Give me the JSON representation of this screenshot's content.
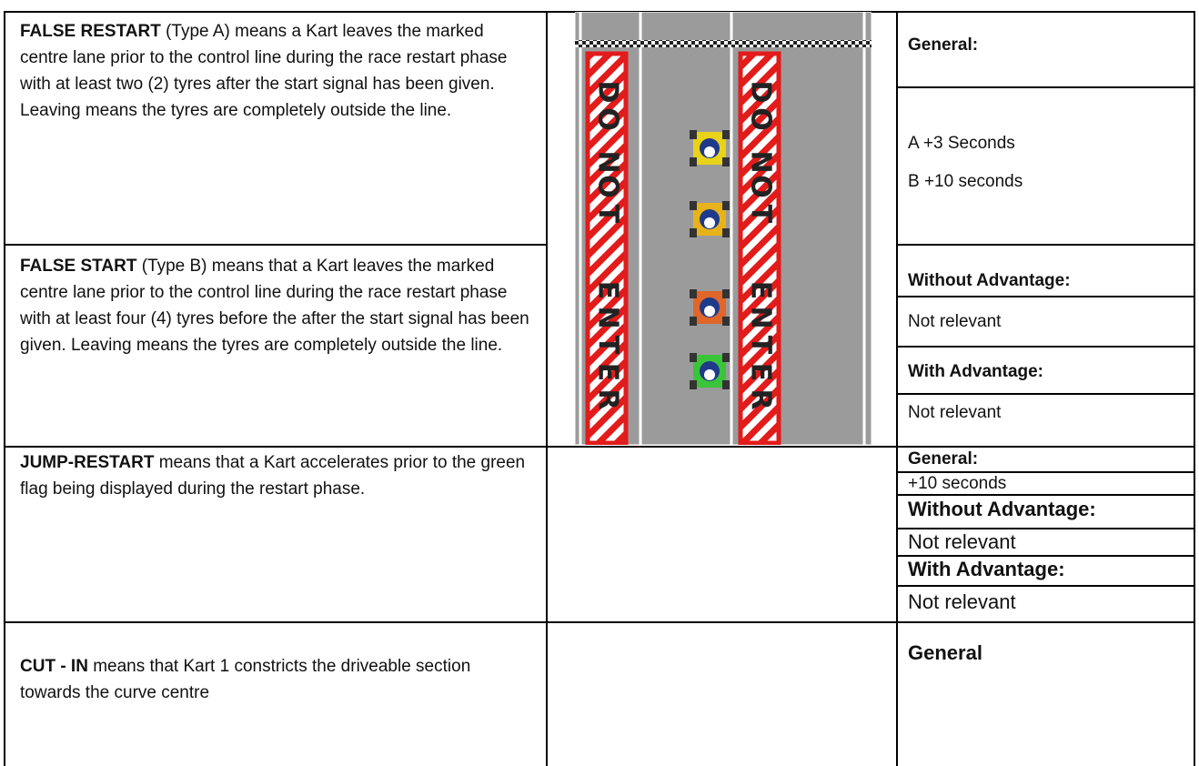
{
  "rows": [
    {
      "term": "FALSE RESTART",
      "description": " (Type A) means a Kart leaves the marked centre lane prior to the control line during the race restart phase with at least two (2) tyres after the start signal has been given. Leaving means the tyres are completely outside the line.",
      "penalties": [
        "General:",
        "A +3 Seconds",
        "B +10 seconds"
      ]
    },
    {
      "term": "FALSE START",
      "description": " (Type B) means that a Kart leaves the marked centre lane prior to the control line during the race restart phase with at least four (4) tyres before the after the start signal has been given. Leaving means the tyres are completely outside the line.",
      "penalties": [
        "Without Advantage:",
        "Not relevant",
        "With Advantage:",
        "Not relevant"
      ]
    },
    {
      "term": "JUMP-RESTART",
      "description": " means that a Kart accelerates prior to the green flag being displayed during the restart phase.",
      "penalties": [
        "General:",
        "+10 seconds",
        "Without Advantage:",
        "Not relevant",
        "With Advantage:",
        "Not relevant"
      ]
    },
    {
      "term": "CUT - IN",
      "description": " means that Kart 1 constricts the driveable section towards the curve centre",
      "penalties": [
        "General"
      ]
    }
  ],
  "image": {
    "sign_letters": [
      "D",
      "O",
      "N",
      "O",
      "T",
      "E",
      "N",
      "T",
      "E",
      "R"
    ]
  }
}
